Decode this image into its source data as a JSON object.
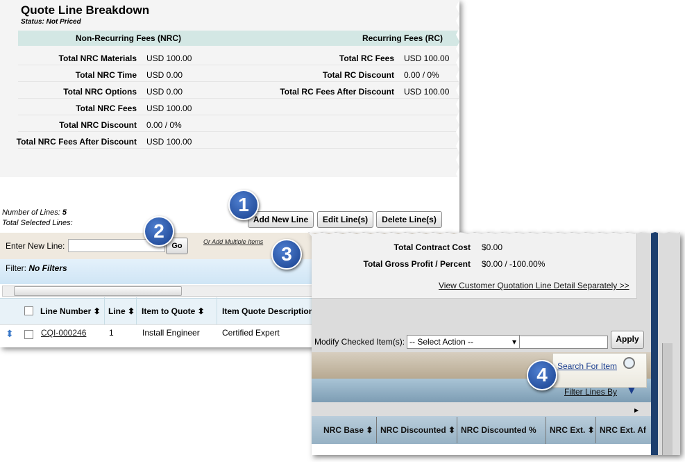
{
  "panel1": {
    "title": "Quote Line Breakdown",
    "status": "Status: Not Priced",
    "nrc_header": "Non-Recurring Fees (NRC)",
    "rc_header": "Recurring Fees (RC)",
    "nrc_rows": [
      [
        "Total NRC Materials",
        "USD 100.00"
      ],
      [
        "Total NRC Time",
        "USD 0.00"
      ],
      [
        "Total NRC Options",
        "USD 0.00"
      ],
      [
        "Total NRC Fees",
        "USD 100.00"
      ],
      [
        "Total NRC Discount",
        "0.00 / 0%"
      ],
      [
        "Total NRC Fees After Discount",
        "USD 100.00"
      ]
    ],
    "rc_rows": [
      [
        "Total RC Fees",
        "USD 100.00"
      ],
      [
        "Total RC Discount",
        "0.00 / 0%"
      ],
      [
        "Total RC Fees After Discount",
        "USD 100.00"
      ]
    ],
    "number_of_lines_label": "Number of Lines:",
    "number_of_lines": 5,
    "total_selected_label": "Total Selected Lines:",
    "buttons": [
      "Add New Line",
      "Edit Line(s)",
      "Delete Line(s)"
    ],
    "enter_new_line": "Enter New Line:",
    "go": "Go",
    "add_multiple": "Or Add Multiple Items",
    "filter_label": "Filter:",
    "filter_value": "No Filters",
    "columns": [
      "Line Number",
      "Line",
      "Item to Quote",
      "Item Quote Description"
    ],
    "row": [
      "CQI-000246",
      "1",
      "Install Engineer",
      "Certified Expert"
    ]
  },
  "panel2": {
    "rows": [
      [
        "Total Contract Cost",
        "$0.00"
      ],
      [
        "Total Gross Profit / Percent",
        "$0.00 / -100.00%"
      ]
    ],
    "detail_link": "View Customer Quotation Line Detail Separately >>",
    "modify_label": "Modify Checked Item(s):",
    "select_action": "-- Select Action --",
    "apply": "Apply",
    "search_for_item": "Search For Item",
    "filter_lines_by": "Filter Lines By",
    "columns": [
      "NRC Base",
      "NRC Discounted",
      "NRC Discounted %",
      "NRC Ext.",
      "NRC Ext. Af"
    ]
  },
  "callouts": [
    "1",
    "2",
    "3",
    "4"
  ]
}
